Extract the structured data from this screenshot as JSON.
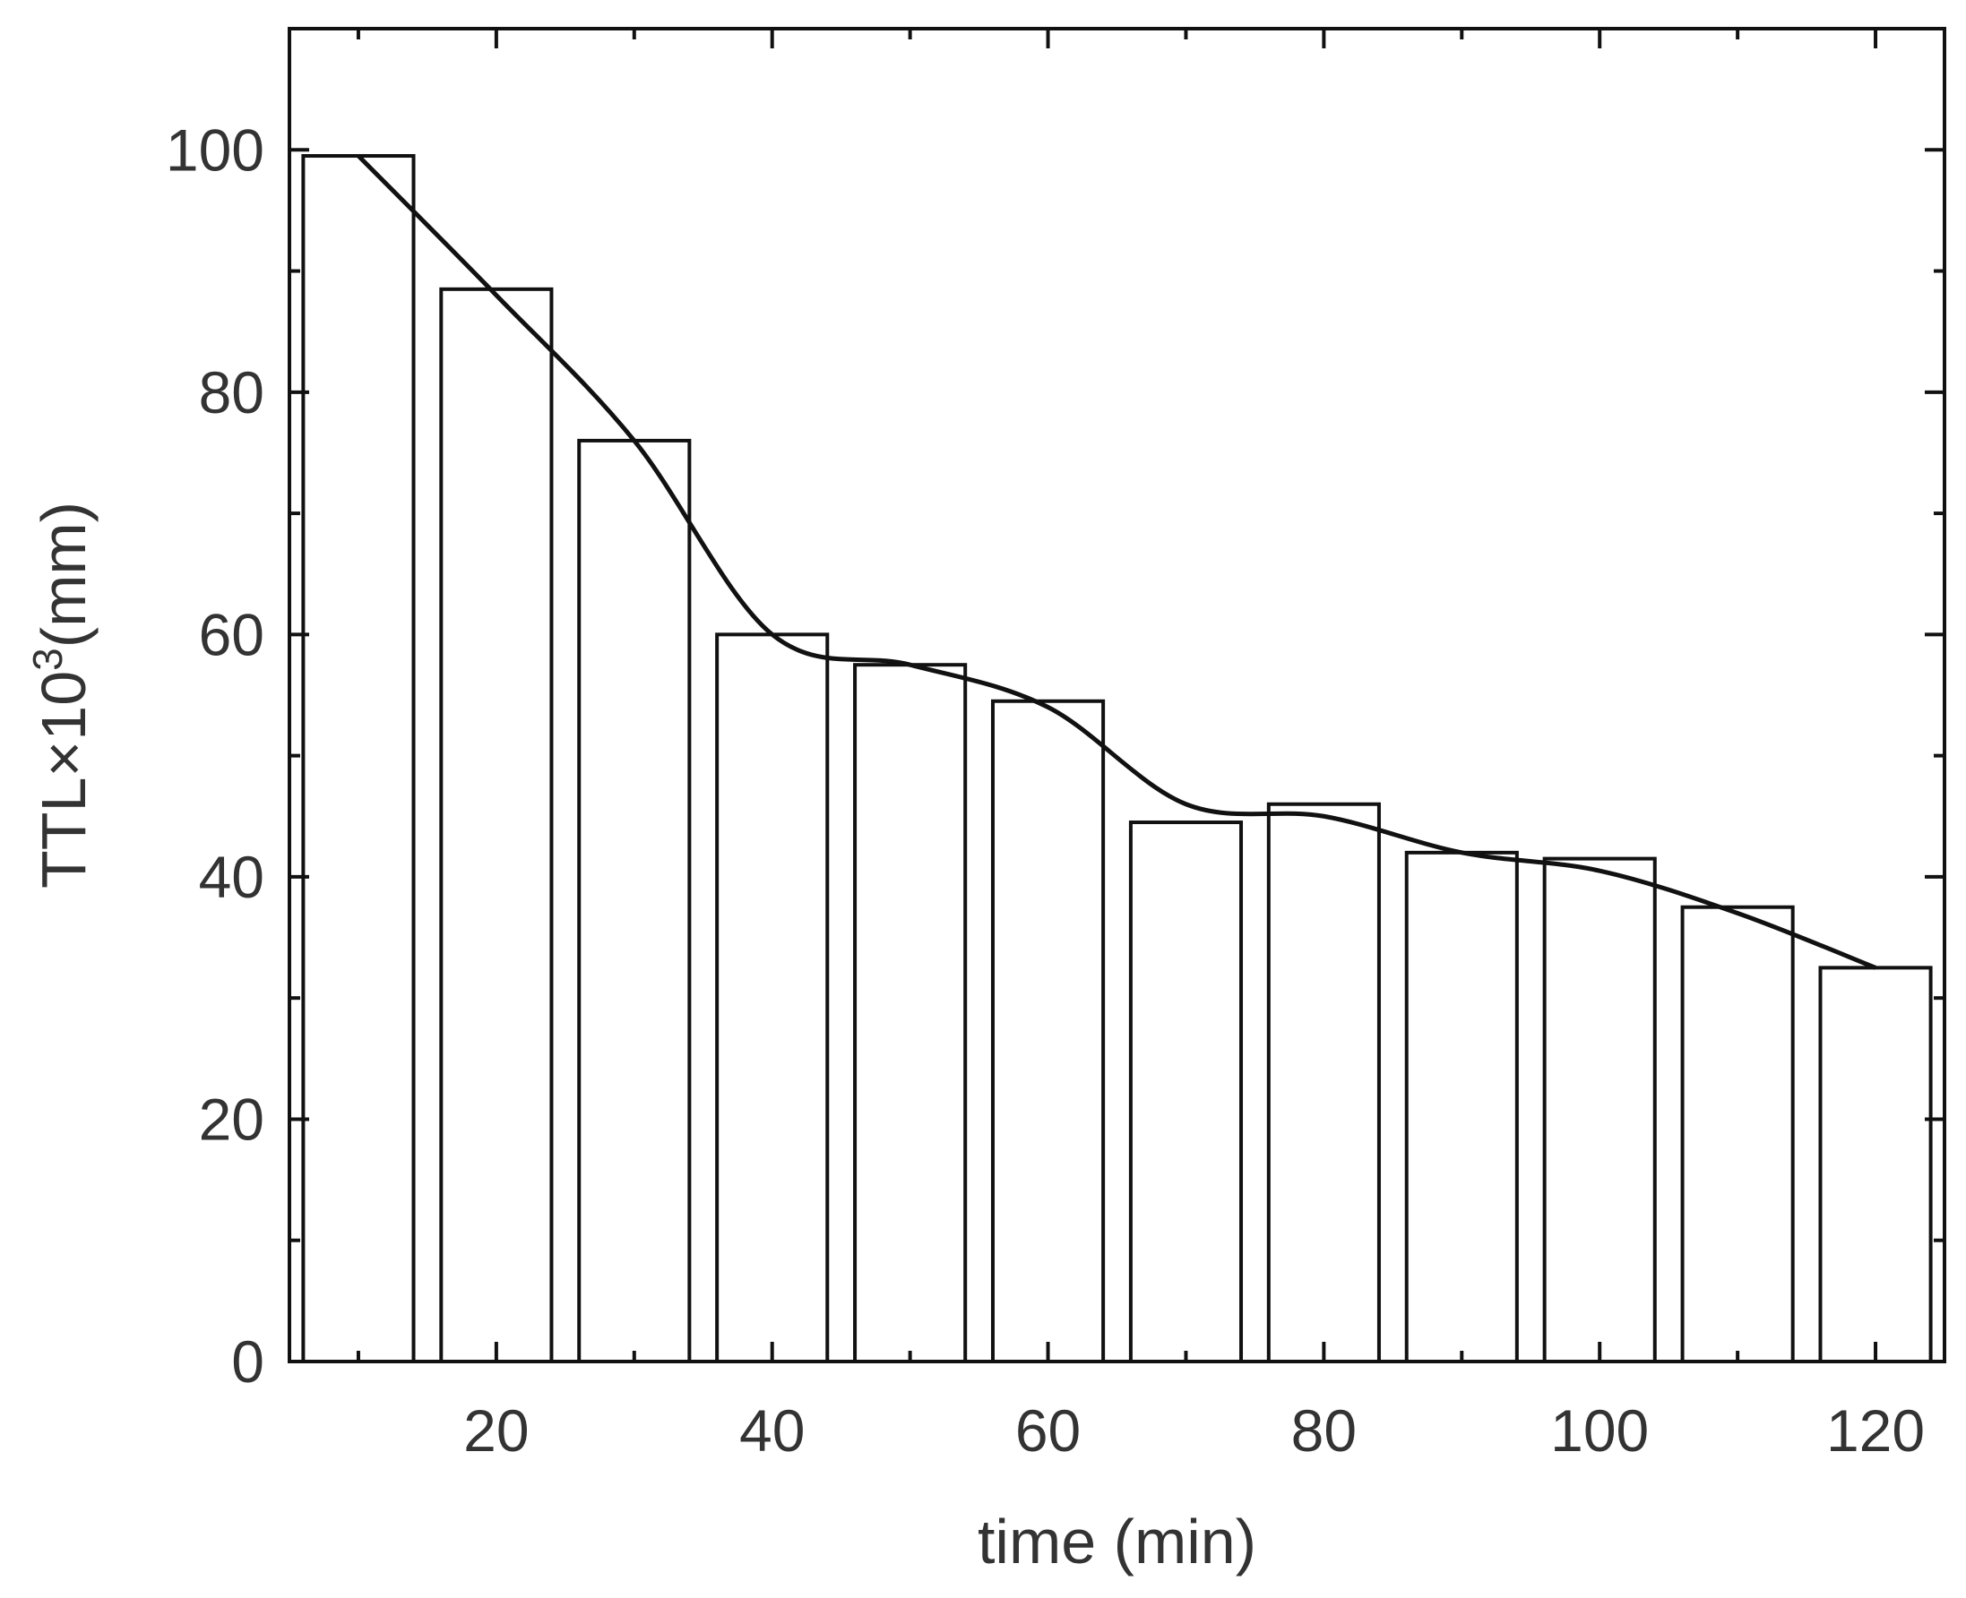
{
  "chart_data": {
    "type": "bar",
    "xlabel": "time (min)",
    "ylabel_main": "TTL×10",
    "ylabel_sup": "3",
    "ylabel_unit": "(mm)",
    "xlim": [
      5,
      125
    ],
    "ylim": [
      0,
      110
    ],
    "xticks": [
      20,
      40,
      60,
      80,
      100,
      120
    ],
    "yticks": [
      0,
      20,
      40,
      60,
      80,
      100
    ],
    "grid": false,
    "bars": {
      "x": [
        10,
        20,
        30,
        40,
        50,
        60,
        70,
        80,
        90,
        100,
        110,
        120
      ],
      "values": [
        99.5,
        88.5,
        76,
        60,
        57.5,
        54.5,
        44.5,
        46,
        42,
        41.5,
        37.5,
        32.5
      ],
      "width": 8
    },
    "line": {
      "x": [
        10,
        20,
        30,
        40,
        50,
        60,
        70,
        80,
        90,
        100,
        110,
        120
      ],
      "values": [
        99.5,
        88,
        76,
        60,
        57.5,
        54,
        46,
        45,
        42,
        40.5,
        37,
        32.5
      ]
    }
  }
}
